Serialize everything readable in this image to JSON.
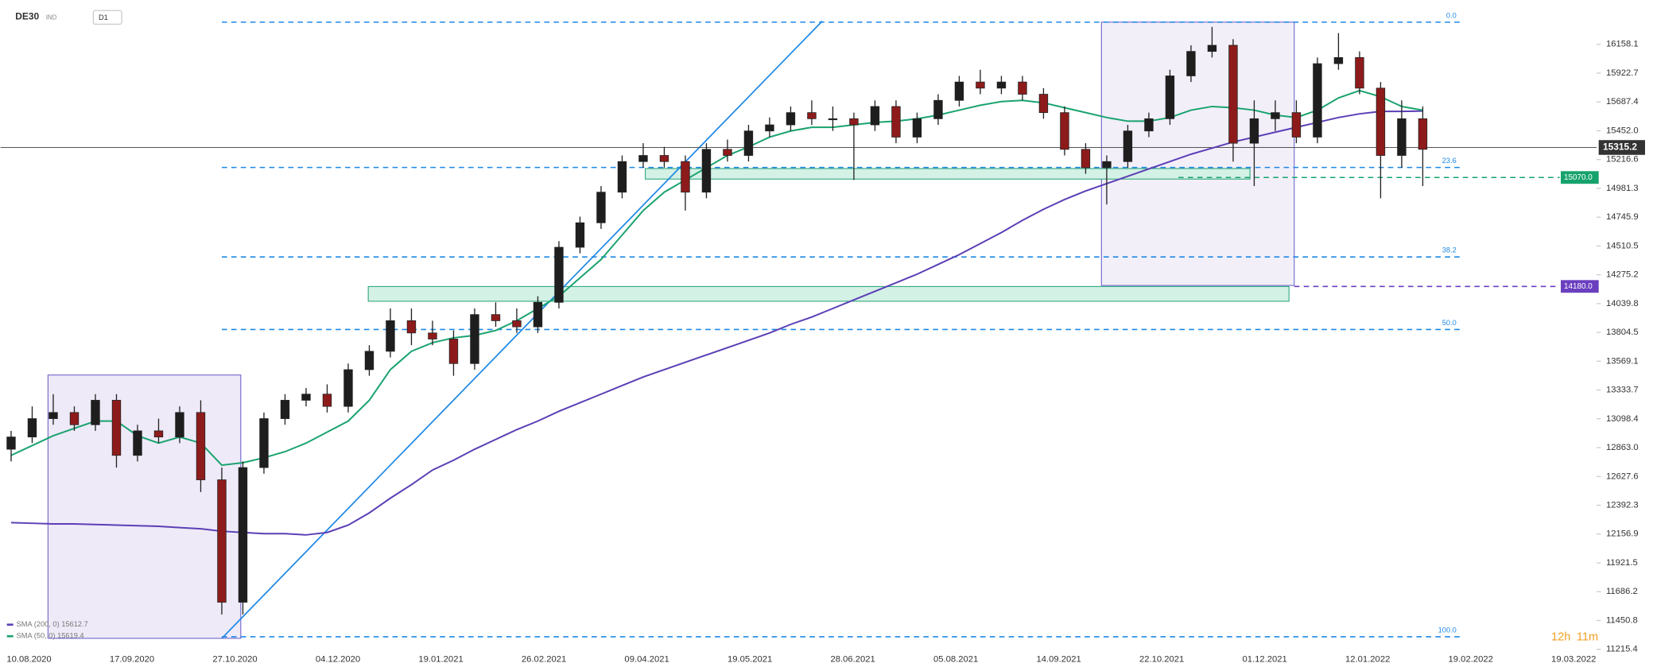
{
  "header": {
    "symbol": "DE30",
    "market": "IND",
    "interval": "D1"
  },
  "countdown": {
    "hours": "12h",
    "minutes": "11m"
  },
  "chart_data": {
    "type": "candlestick",
    "x_labels": [
      "10.08.2020",
      "17.09.2020",
      "27.10.2020",
      "04.12.2020",
      "19.01.2021",
      "26.02.2021",
      "09.04.2021",
      "19.05.2021",
      "28.06.2021",
      "05.08.2021",
      "14.09.2021",
      "22.10.2021",
      "01.12.2021",
      "12.01.2022",
      "19.02.2022",
      "19.03.2022"
    ],
    "ylim": [
      11150,
      16520
    ],
    "yticks": [
      16158.1,
      15922.7,
      15687.4,
      {
        "value": 15452,
        "label": "15452.0"
      },
      15216.6,
      14981.3,
      14745.9,
      14510.5,
      14275.2,
      14039.8,
      13804.5,
      13569.1,
      13333.7,
      13098.4,
      {
        "value": 12863,
        "label": "12863.0"
      },
      12627.6,
      12392.3,
      12156.9,
      11921.5,
      11686.2,
      11450.8,
      11215.4
    ],
    "up_color": "#1e1e1e",
    "down_color": "#8e1b1b",
    "open": [
      12850,
      12950,
      13100,
      13150,
      13050,
      13250,
      12800,
      13000,
      12950,
      13150,
      12600,
      11600,
      12700,
      13100,
      13250,
      13300,
      13200,
      13500,
      13650,
      13900,
      13800,
      13750,
      13550,
      13950,
      13900,
      13850,
      14050,
      14500,
      14700,
      14950,
      15200,
      15250,
      15200,
      14950,
      15300,
      15250,
      15450,
      15500,
      15600,
      15550,
      15550,
      15500,
      15650,
      15400,
      15550,
      15700,
      15850,
      15800,
      15850,
      15750,
      15600,
      15300,
      15150,
      15200,
      15450,
      15550,
      15900,
      16100,
      16150,
      15350,
      15550,
      15600,
      15400,
      16000,
      16050,
      15800,
      15250,
      15550
    ],
    "high": [
      13000,
      13200,
      13300,
      13200,
      13300,
      13300,
      13050,
      13100,
      13200,
      13250,
      12700,
      12750,
      13150,
      13300,
      13350,
      13380,
      13550,
      13700,
      14000,
      14000,
      13900,
      13820,
      14000,
      14050,
      14000,
      14100,
      14550,
      14750,
      15000,
      15250,
      15350,
      15320,
      15250,
      15350,
      15380,
      15500,
      15560,
      15650,
      15700,
      15650,
      15600,
      15700,
      15700,
      15600,
      15750,
      15900,
      15950,
      15900,
      15900,
      15800,
      15650,
      15350,
      15250,
      15500,
      15600,
      15950,
      16150,
      16300,
      16200,
      15700,
      15700,
      15700,
      16050,
      16250,
      16100,
      15850,
      15700,
      15650
    ],
    "low": [
      12750,
      12900,
      13050,
      13000,
      13000,
      12700,
      12750,
      12900,
      12900,
      12500,
      11500,
      11500,
      12650,
      13050,
      13200,
      13150,
      13150,
      13450,
      13600,
      13700,
      13700,
      13450,
      13500,
      13850,
      13800,
      13800,
      14000,
      14450,
      14650,
      14900,
      15150,
      15150,
      14800,
      14900,
      15200,
      15200,
      15400,
      15450,
      15500,
      15450,
      15050,
      15450,
      15350,
      15350,
      15500,
      15650,
      15750,
      15750,
      15700,
      15550,
      15250,
      15100,
      14850,
      15150,
      15400,
      15500,
      15850,
      16050,
      15200,
      15000,
      15450,
      15350,
      15350,
      15950,
      15750,
      14900,
      15150,
      15000
    ],
    "close": [
      12950,
      13100,
      13150,
      13050,
      13250,
      12800,
      13000,
      12950,
      13150,
      12600,
      11600,
      12700,
      13100,
      13250,
      13300,
      13200,
      13500,
      13650,
      13900,
      13800,
      13750,
      13550,
      13950,
      13900,
      13850,
      14050,
      14500,
      14700,
      14950,
      15200,
      15250,
      15200,
      14950,
      15300,
      15250,
      15450,
      15500,
      15600,
      15550,
      15550,
      15500,
      15650,
      15400,
      15550,
      15700,
      15850,
      15800,
      15850,
      15750,
      15600,
      15300,
      15150,
      15200,
      15450,
      15550,
      15900,
      16100,
      16150,
      15350,
      15550,
      15600,
      15400,
      16000,
      16050,
      15800,
      15250,
      15550,
      15300
    ],
    "series": [
      {
        "name": "SMA (200, 0) 15612.7",
        "color": "#5b3fb5",
        "values": [
          12250,
          12245,
          12240,
          12240,
          12235,
          12230,
          12225,
          12220,
          12210,
          12200,
          12180,
          12170,
          12160,
          12160,
          12150,
          12170,
          12230,
          12330,
          12450,
          12560,
          12680,
          12760,
          12850,
          12930,
          13010,
          13080,
          13160,
          13230,
          13300,
          13370,
          13440,
          13500,
          13560,
          13620,
          13680,
          13740,
          13800,
          13870,
          13930,
          14000,
          14070,
          14140,
          14210,
          14280,
          14360,
          14440,
          14530,
          14620,
          14720,
          14810,
          14890,
          14960,
          15020,
          15080,
          15140,
          15200,
          15260,
          15310,
          15360,
          15400,
          15440,
          15480,
          15520,
          15560,
          15590,
          15610,
          15610,
          15612.7
        ]
      },
      {
        "name": "SMA (50, 0) 15619.4",
        "color": "#1aa36f",
        "values": [
          12800,
          12880,
          12960,
          13020,
          13080,
          13080,
          12960,
          12900,
          12950,
          12900,
          12720,
          12740,
          12780,
          12830,
          12900,
          12990,
          13080,
          13250,
          13500,
          13650,
          13720,
          13760,
          13780,
          13820,
          13900,
          14000,
          14100,
          14250,
          14400,
          14600,
          14800,
          14950,
          15050,
          15150,
          15250,
          15320,
          15400,
          15450,
          15480,
          15480,
          15500,
          15520,
          15530,
          15550,
          15580,
          15620,
          15660,
          15690,
          15700,
          15680,
          15640,
          15600,
          15560,
          15530,
          15530,
          15560,
          15620,
          15650,
          15640,
          15620,
          15580,
          15560,
          15620,
          15720,
          15780,
          15730,
          15650,
          15619.4
        ]
      }
    ],
    "fib_levels": [
      {
        "label": "0.0",
        "value": 16339
      },
      {
        "label": "23.6",
        "value": 15152
      },
      {
        "label": "38.2",
        "value": 14421
      },
      {
        "label": "50.0",
        "value": 13828
      },
      {
        "label": "100.0",
        "value": 11318
      }
    ],
    "price_levels": [
      {
        "label": "15315.2",
        "value": 15315.2,
        "color": "#333333"
      },
      {
        "label": "15070.0",
        "value": 15070,
        "color": "#16a36b"
      },
      {
        "label": "14180.0",
        "value": 14180,
        "color": "#6a3fc0"
      }
    ]
  }
}
